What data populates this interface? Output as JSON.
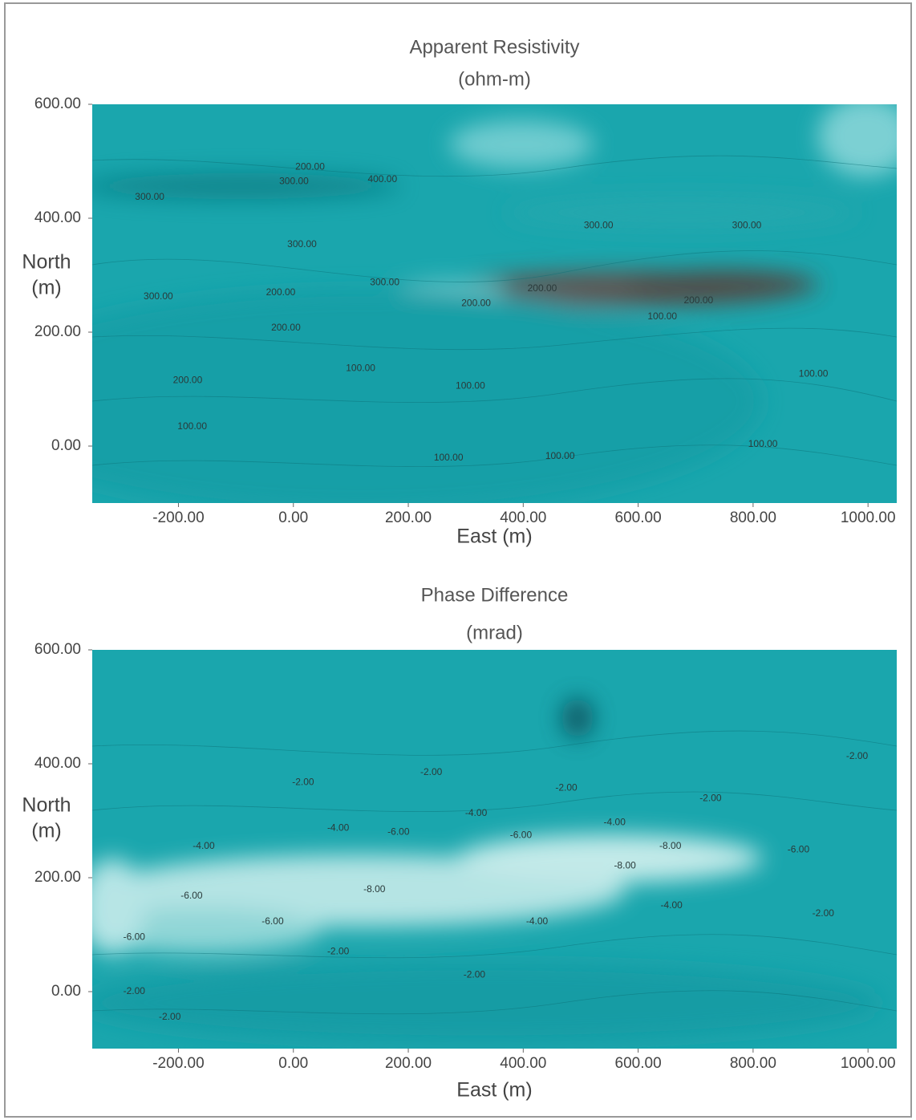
{
  "chart_data": [
    {
      "type": "contour",
      "title": "Apparent Resistivity",
      "subtitle": "(ohm-m)",
      "xlabel": "East (m)",
      "ylabel": [
        "North",
        "(m)"
      ],
      "xlim": [
        -350,
        1050
      ],
      "ylim": [
        -100,
        600
      ],
      "xticks": [
        {
          "value": -200,
          "label": "-200.00"
        },
        {
          "value": 0,
          "label": "0.00"
        },
        {
          "value": 200,
          "label": "200.00"
        },
        {
          "value": 400,
          "label": "400.00"
        },
        {
          "value": 600,
          "label": "600.00"
        },
        {
          "value": 800,
          "label": "800.00"
        },
        {
          "value": 1000,
          "label": "1000.00"
        }
      ],
      "yticks": [
        {
          "value": 0,
          "label": "0.00"
        },
        {
          "value": 200,
          "label": "200.00"
        },
        {
          "value": 400,
          "label": "400.00"
        },
        {
          "value": 600,
          "label": "600.00"
        }
      ],
      "color": "#1aa6ad",
      "annotations": [
        {
          "text": "300.00",
          "x": -250,
          "y": 437
        },
        {
          "text": "200.00",
          "x": 29,
          "y": 490
        },
        {
          "text": "300.00",
          "x": 1,
          "y": 464
        },
        {
          "text": "400.00",
          "x": 155,
          "y": 468
        },
        {
          "text": "300.00",
          "x": 531,
          "y": 387
        },
        {
          "text": "300.00",
          "x": 789,
          "y": 387
        },
        {
          "text": "300.00",
          "x": 15,
          "y": 354
        },
        {
          "text": "300.00",
          "x": -235,
          "y": 262
        },
        {
          "text": "200.00",
          "x": -22,
          "y": 269
        },
        {
          "text": "300.00",
          "x": 159,
          "y": 287
        },
        {
          "text": "200.00",
          "x": 318,
          "y": 250
        },
        {
          "text": "200.00",
          "x": 433,
          "y": 276
        },
        {
          "text": "100.00",
          "x": 642,
          "y": 227
        },
        {
          "text": "200.00",
          "x": 705,
          "y": 255
        },
        {
          "text": "200.00",
          "x": -13,
          "y": 207
        },
        {
          "text": "200.00",
          "x": -184,
          "y": 115
        },
        {
          "text": "100.00",
          "x": 117,
          "y": 136
        },
        {
          "text": "100.00",
          "x": 308,
          "y": 105
        },
        {
          "text": "100.00",
          "x": 905,
          "y": 126
        },
        {
          "text": "100.00",
          "x": -176,
          "y": 34
        },
        {
          "text": "100.00",
          "x": 270,
          "y": -21
        },
        {
          "text": "100.00",
          "x": 464,
          "y": -18
        },
        {
          "text": "100.00",
          "x": 817,
          "y": 3
        }
      ]
    },
    {
      "type": "contour",
      "title": "Phase Difference",
      "subtitle": "(mrad)",
      "xlabel": "East (m)",
      "ylabel": [
        "North",
        "(m)"
      ],
      "xlim": [
        -350,
        1050
      ],
      "ylim": [
        -100,
        600
      ],
      "xticks": [
        {
          "value": -200,
          "label": "-200.00"
        },
        {
          "value": 0,
          "label": "0.00"
        },
        {
          "value": 200,
          "label": "200.00"
        },
        {
          "value": 400,
          "label": "400.00"
        },
        {
          "value": 600,
          "label": "600.00"
        },
        {
          "value": 800,
          "label": "800.00"
        },
        {
          "value": 1000,
          "label": "1000.00"
        }
      ],
      "yticks": [
        {
          "value": 0,
          "label": "0.00"
        },
        {
          "value": 200,
          "label": "200.00"
        },
        {
          "value": 400,
          "label": "400.00"
        },
        {
          "value": 600,
          "label": "600.00"
        }
      ],
      "color": "#1aa6ad",
      "annotations": [
        {
          "text": "-2.00",
          "x": 17,
          "y": 367
        },
        {
          "text": "-2.00",
          "x": 240,
          "y": 385
        },
        {
          "text": "-2.00",
          "x": 475,
          "y": 357
        },
        {
          "text": "-2.00",
          "x": 726,
          "y": 339
        },
        {
          "text": "-2.00",
          "x": 981,
          "y": 413
        },
        {
          "text": "-4.00",
          "x": 318,
          "y": 313
        },
        {
          "text": "-4.00",
          "x": 78,
          "y": 287
        },
        {
          "text": "-6.00",
          "x": 183,
          "y": 280
        },
        {
          "text": "-6.00",
          "x": 396,
          "y": 274
        },
        {
          "text": "-4.00",
          "x": 559,
          "y": 297
        },
        {
          "text": "-8.00",
          "x": 656,
          "y": 255
        },
        {
          "text": "-6.00",
          "x": 879,
          "y": 249
        },
        {
          "text": "-4.00",
          "x": -156,
          "y": 255
        },
        {
          "text": "-8.00",
          "x": 577,
          "y": 221
        },
        {
          "text": "-6.00",
          "x": -177,
          "y": 168
        },
        {
          "text": "-8.00",
          "x": 141,
          "y": 179
        },
        {
          "text": "-6.00",
          "x": -36,
          "y": 123
        },
        {
          "text": "-6.00",
          "x": -277,
          "y": 95
        },
        {
          "text": "-2.00",
          "x": 78,
          "y": 70
        },
        {
          "text": "-4.00",
          "x": 424,
          "y": 123
        },
        {
          "text": "-4.00",
          "x": 658,
          "y": 151
        },
        {
          "text": "-2.00",
          "x": 922,
          "y": 137
        },
        {
          "text": "-2.00",
          "x": 315,
          "y": 29
        },
        {
          "text": "-2.00",
          "x": -277,
          "y": 0
        },
        {
          "text": "-2.00",
          "x": -215,
          "y": -45
        }
      ]
    }
  ]
}
